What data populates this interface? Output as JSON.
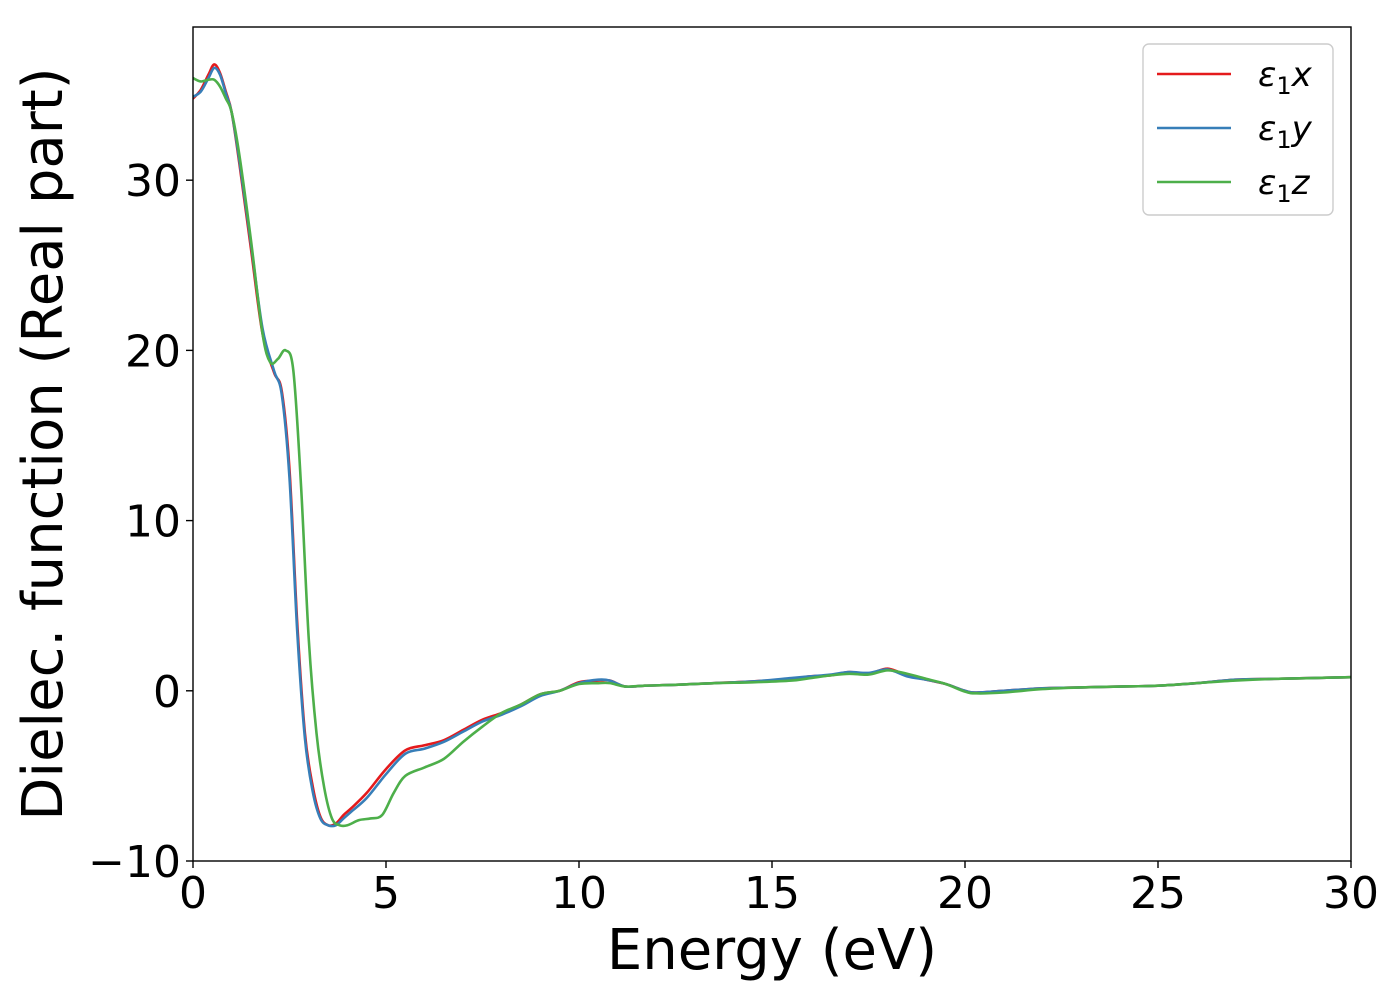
{
  "chart_data": {
    "type": "line",
    "xlabel": "Energy (eV)",
    "ylabel": "Dielec. function (Real part)",
    "xlim": [
      0,
      30
    ],
    "ylim": [
      -10,
      39
    ],
    "xticks": [
      0,
      5,
      10,
      15,
      20,
      25,
      30
    ],
    "xtick_labels": [
      "0",
      "5",
      "10",
      "15",
      "20",
      "25",
      "30"
    ],
    "yticks": [
      -10,
      0,
      10,
      20,
      30
    ],
    "ytick_labels": [
      "−10",
      "0",
      "10",
      "20",
      "30"
    ],
    "grid": false,
    "legend_position": "top-right",
    "series": [
      {
        "name": "x",
        "legend_symbol": "ε",
        "legend_subscript": "1",
        "color": "#e41a1c",
        "x": [
          0,
          0.2,
          0.4,
          0.55,
          0.7,
          0.85,
          1.0,
          1.2,
          1.5,
          1.8,
          2.1,
          2.3,
          2.5,
          2.7,
          2.9,
          3.1,
          3.3,
          3.5,
          3.7,
          3.9,
          4.1,
          4.5,
          5.0,
          5.5,
          6.0,
          6.5,
          7.0,
          7.5,
          8.0,
          8.5,
          9.0,
          9.5,
          10.0,
          10.5,
          10.8,
          11.2,
          11.7,
          12.5,
          13.5,
          14.5,
          15.5,
          16.0,
          16.5,
          17.0,
          17.5,
          18.0,
          18.5,
          19.0,
          19.5,
          20.0,
          20.3,
          21.0,
          22.0,
          23.0,
          24.0,
          25.0,
          26.0,
          27.0,
          28.0,
          29.0,
          30.0
        ],
        "y": [
          34.8,
          35.3,
          36.2,
          36.8,
          36.3,
          35.2,
          34.0,
          31.0,
          26.0,
          21.0,
          18.7,
          17.6,
          13.0,
          4.0,
          -2.5,
          -5.6,
          -7.4,
          -7.9,
          -7.8,
          -7.3,
          -6.9,
          -6.0,
          -4.6,
          -3.5,
          -3.2,
          -2.9,
          -2.3,
          -1.7,
          -1.3,
          -0.8,
          -0.2,
          0.0,
          0.5,
          0.6,
          0.6,
          0.25,
          0.3,
          0.35,
          0.45,
          0.55,
          0.7,
          0.85,
          0.9,
          1.1,
          1.0,
          1.3,
          0.9,
          0.65,
          0.4,
          0.0,
          -0.1,
          0.0,
          0.15,
          0.2,
          0.25,
          0.3,
          0.45,
          0.65,
          0.7,
          0.75,
          0.8
        ]
      },
      {
        "name": "y",
        "legend_symbol": "ε",
        "legend_subscript": "1",
        "color": "#377eb8",
        "x": [
          0,
          0.2,
          0.4,
          0.55,
          0.7,
          0.85,
          1.0,
          1.2,
          1.5,
          1.8,
          2.1,
          2.3,
          2.5,
          2.7,
          2.9,
          3.1,
          3.3,
          3.5,
          3.7,
          3.9,
          4.1,
          4.5,
          5.0,
          5.5,
          6.0,
          6.5,
          7.0,
          7.5,
          8.0,
          8.5,
          9.0,
          9.5,
          10.0,
          10.5,
          10.8,
          11.2,
          11.7,
          12.5,
          13.5,
          14.5,
          15.5,
          16.0,
          16.5,
          17.0,
          17.5,
          18.0,
          18.5,
          19.0,
          19.5,
          20.0,
          20.3,
          21.0,
          22.0,
          23.0,
          24.0,
          25.0,
          26.0,
          27.0,
          28.0,
          29.0,
          30.0
        ],
        "y": [
          34.9,
          35.2,
          36.0,
          36.6,
          36.2,
          35.1,
          34.0,
          31.2,
          26.3,
          21.3,
          18.8,
          17.4,
          12.5,
          3.5,
          -2.8,
          -5.9,
          -7.5,
          -7.9,
          -7.9,
          -7.5,
          -7.1,
          -6.3,
          -4.9,
          -3.7,
          -3.4,
          -3.0,
          -2.4,
          -1.8,
          -1.4,
          -0.9,
          -0.3,
          0.0,
          0.45,
          0.65,
          0.6,
          0.25,
          0.3,
          0.35,
          0.45,
          0.55,
          0.75,
          0.85,
          0.95,
          1.1,
          1.05,
          1.25,
          0.85,
          0.65,
          0.4,
          0.0,
          -0.1,
          0.0,
          0.15,
          0.2,
          0.25,
          0.3,
          0.45,
          0.65,
          0.7,
          0.75,
          0.8
        ]
      },
      {
        "name": "z",
        "legend_symbol": "ε",
        "legend_subscript": "1",
        "color": "#4daf4a",
        "x": [
          0,
          0.2,
          0.4,
          0.55,
          0.7,
          0.85,
          1.0,
          1.2,
          1.5,
          1.8,
          2.0,
          2.2,
          2.4,
          2.6,
          2.8,
          3.0,
          3.2,
          3.4,
          3.6,
          3.8,
          4.0,
          4.3,
          4.6,
          4.9,
          5.2,
          5.5,
          6.0,
          6.5,
          7.0,
          7.5,
          8.0,
          8.5,
          9.0,
          9.5,
          10.0,
          10.5,
          10.8,
          11.2,
          11.7,
          12.5,
          13.5,
          14.5,
          15.5,
          16.0,
          16.5,
          17.0,
          17.5,
          18.0,
          18.5,
          19.0,
          19.5,
          20.0,
          20.3,
          21.0,
          22.0,
          23.0,
          24.0,
          25.0,
          26.0,
          27.0,
          28.0,
          29.0,
          30.0
        ],
        "y": [
          36.0,
          35.8,
          35.9,
          35.9,
          35.5,
          34.8,
          34.0,
          31.5,
          26.5,
          21.0,
          19.3,
          19.5,
          20.0,
          18.8,
          12.0,
          3.0,
          -2.5,
          -5.7,
          -7.5,
          -7.9,
          -7.9,
          -7.6,
          -7.5,
          -7.3,
          -6.0,
          -5.0,
          -4.5,
          -4.0,
          -3.0,
          -2.1,
          -1.3,
          -0.8,
          -0.2,
          0.0,
          0.4,
          0.45,
          0.45,
          0.25,
          0.3,
          0.35,
          0.45,
          0.5,
          0.6,
          0.75,
          0.9,
          1.0,
          0.95,
          1.2,
          1.0,
          0.7,
          0.4,
          -0.05,
          -0.15,
          -0.1,
          0.1,
          0.2,
          0.25,
          0.3,
          0.45,
          0.6,
          0.7,
          0.75,
          0.8
        ]
      }
    ]
  }
}
